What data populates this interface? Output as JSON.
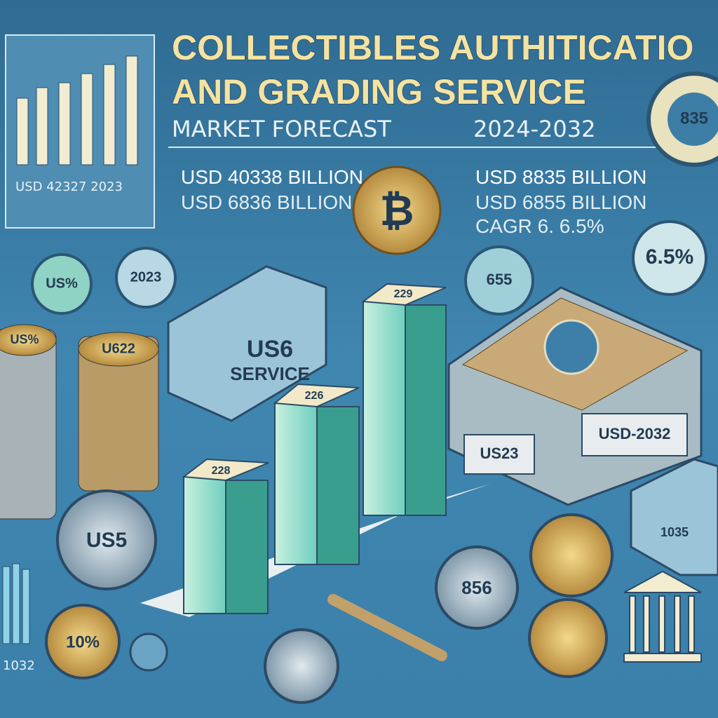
{
  "header": {
    "title_line1": "COLLECTIBLES AUTHITICATIO",
    "title_line2": "AND GRADING SERVICE",
    "subtitle": "MARKET FORECAST",
    "period": "2024-2032"
  },
  "left_panel": {
    "caption": "USD 42327 2023"
  },
  "left_stats": [
    "USD 40338 BILLION",
    "USD 6836 BILLION"
  ],
  "right_stats": [
    "USD 8835 BILLION",
    "USD 6855 BILLION",
    "CAGR 6. 6.5%"
  ],
  "badges": {
    "gauge": "835",
    "cagr_circle": "6.5%",
    "coin_655": "655",
    "coin_left": "US%",
    "coin_year": "2023",
    "stack_left": "US%",
    "stack_mid": "U622",
    "box_front": "US6",
    "box_service": "SERVICE",
    "bar_1": "228",
    "bar_2": "226",
    "bar_3": "229",
    "chest_left": "US23",
    "chest_right": "USD-2032",
    "small_box": "1035",
    "coin_big": "US5",
    "coin_856": "856",
    "coin_percent": "10%",
    "corner_year": "1032"
  }
}
